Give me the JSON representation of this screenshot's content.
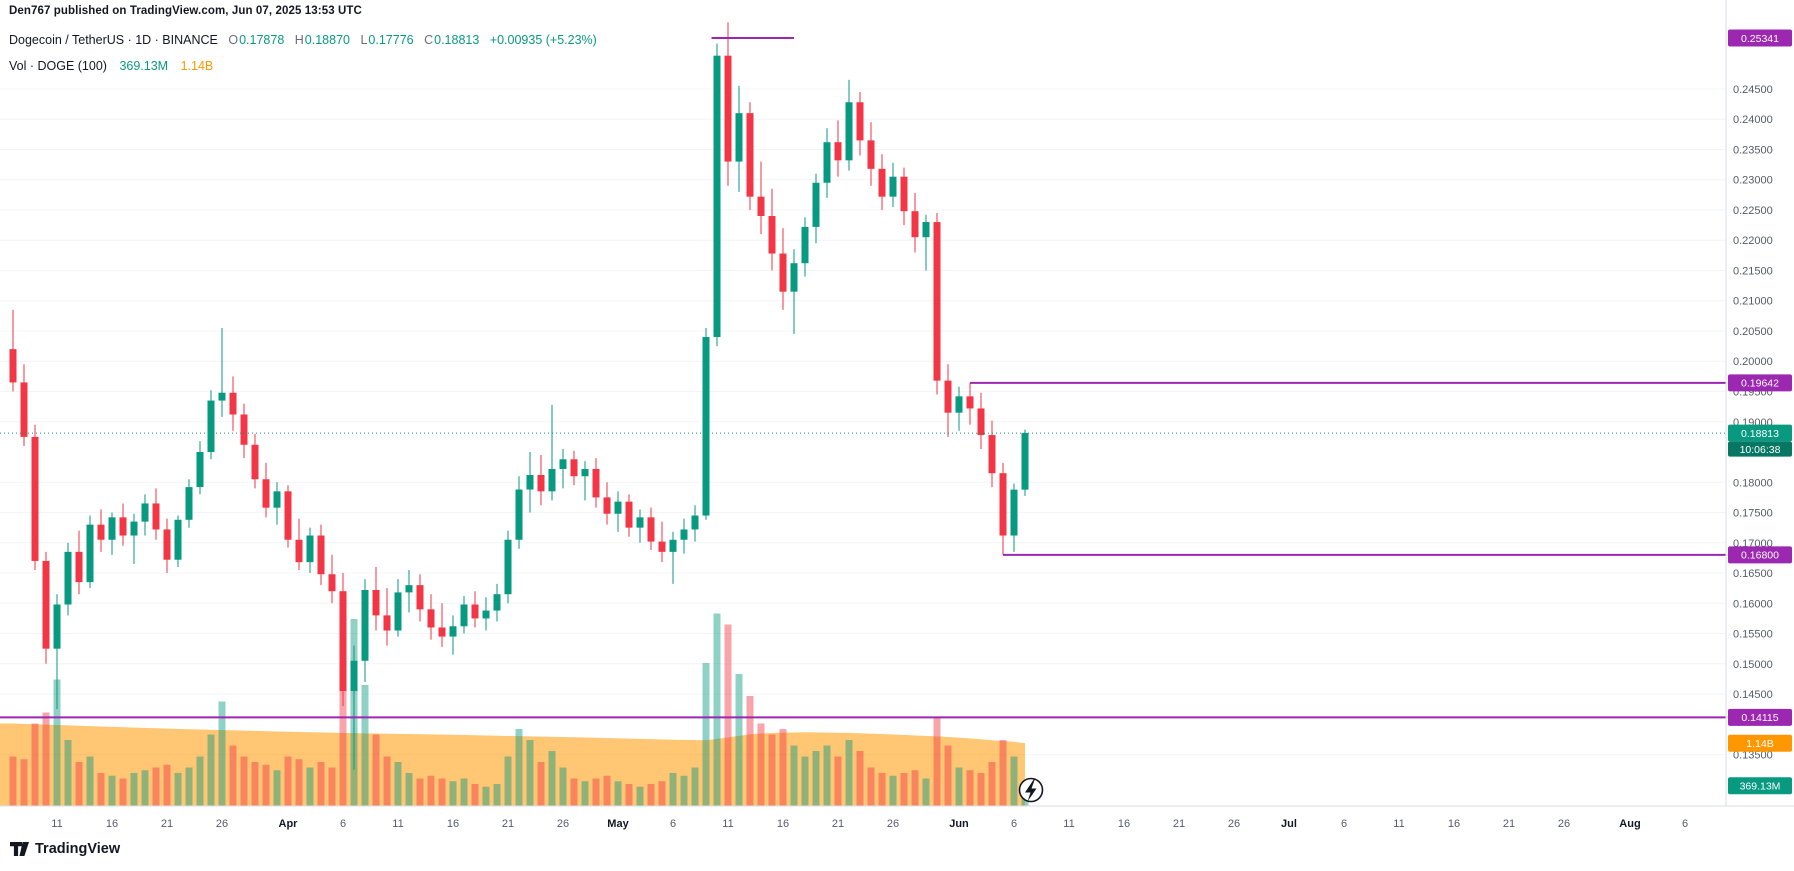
{
  "header": {
    "publish_info": "Den767 published on TradingView.com, Jun 07, 2025 13:53 UTC"
  },
  "legend": {
    "symbol_line": "Dogecoin / TetherUS · 1D · BINANCE",
    "ohlc": [
      {
        "k": "O",
        "v": "0.17878"
      },
      {
        "k": "H",
        "v": "0.18870"
      },
      {
        "k": "L",
        "v": "0.17776"
      },
      {
        "k": "C",
        "v": "0.18813"
      }
    ],
    "change": "+0.00935 (+5.23%)",
    "volume_label": "Vol · DOGE (100)",
    "volume_value": "369.13M",
    "volume_ma_value": "1.14B"
  },
  "footer": {
    "brand": "TradingView"
  },
  "colors": {
    "up": "#089981",
    "down": "#f23645",
    "purple": "#9c27b0",
    "orange": "#ff9800",
    "countdown_bg": "#077662",
    "axis_text": "#555b66",
    "month_text": "#131722",
    "grid": "#f2f4f7",
    "separator": "#dbdee6",
    "vol_up": "rgba(8,153,129,0.45)",
    "vol_down": "rgba(242,54,69,0.45)",
    "vol_ma_fill": "rgba(255,152,0,0.55)"
  },
  "chart_data": {
    "type": "candlestick",
    "title": "Dogecoin / TetherUS · 1D · BINANCE",
    "interval": "1D",
    "start_date": "2025-03-07",
    "price_axis": {
      "top_value": 0.2597,
      "bottom_value": 0.1265,
      "ticks": [
        "0.24500",
        "0.24000",
        "0.23500",
        "0.23000",
        "0.22500",
        "0.22000",
        "0.21500",
        "0.21000",
        "0.20500",
        "0.20000",
        "0.19500",
        "0.19000",
        "0.18000",
        "0.17500",
        "0.17000",
        "0.16500",
        "0.16000",
        "0.15500",
        "0.15000",
        "0.14500",
        "0.13500"
      ]
    },
    "time_axis": {
      "ticks": [
        {
          "label": "11",
          "day": 4,
          "major": false
        },
        {
          "label": "16",
          "day": 9,
          "major": false
        },
        {
          "label": "21",
          "day": 14,
          "major": false
        },
        {
          "label": "26",
          "day": 19,
          "major": false
        },
        {
          "label": "Apr",
          "day": 25,
          "major": true
        },
        {
          "label": "6",
          "day": 30,
          "major": false
        },
        {
          "label": "11",
          "day": 35,
          "major": false
        },
        {
          "label": "16",
          "day": 40,
          "major": false
        },
        {
          "label": "21",
          "day": 45,
          "major": false
        },
        {
          "label": "26",
          "day": 50,
          "major": false
        },
        {
          "label": "May",
          "day": 55,
          "major": true
        },
        {
          "label": "6",
          "day": 60,
          "major": false
        },
        {
          "label": "11",
          "day": 65,
          "major": false
        },
        {
          "label": "16",
          "day": 70,
          "major": false
        },
        {
          "label": "21",
          "day": 75,
          "major": false
        },
        {
          "label": "26",
          "day": 80,
          "major": false
        },
        {
          "label": "Jun",
          "day": 86,
          "major": true
        },
        {
          "label": "6",
          "day": 91,
          "major": false
        },
        {
          "label": "11",
          "day": 96,
          "major": false
        },
        {
          "label": "16",
          "day": 101,
          "major": false
        },
        {
          "label": "21",
          "day": 106,
          "major": false
        },
        {
          "label": "26",
          "day": 111,
          "major": false
        },
        {
          "label": "Jul",
          "day": 116,
          "major": true
        },
        {
          "label": "6",
          "day": 121,
          "major": false
        },
        {
          "label": "11",
          "day": 126,
          "major": false
        },
        {
          "label": "16",
          "day": 131,
          "major": false
        },
        {
          "label": "21",
          "day": 136,
          "major": false
        },
        {
          "label": "26",
          "day": 141,
          "major": false
        },
        {
          "label": "Aug",
          "day": 147,
          "major": true
        },
        {
          "label": "6",
          "day": 152,
          "major": false
        }
      ]
    },
    "candles": [
      [
        0.202,
        0.2085,
        0.195,
        0.1965,
        900
      ],
      [
        0.1965,
        0.1995,
        0.186,
        0.1875,
        850
      ],
      [
        0.1875,
        0.1895,
        0.1655,
        0.167,
        1500
      ],
      [
        0.167,
        0.1685,
        0.15,
        0.1525,
        1700
      ],
      [
        0.1525,
        0.1615,
        0.1425,
        0.1598,
        2300
      ],
      [
        0.1598,
        0.17,
        0.158,
        0.1685,
        1200
      ],
      [
        0.1685,
        0.172,
        0.1615,
        0.1635,
        800
      ],
      [
        0.1635,
        0.1745,
        0.1625,
        0.173,
        900
      ],
      [
        0.173,
        0.1755,
        0.1685,
        0.1705,
        600
      ],
      [
        0.1705,
        0.175,
        0.168,
        0.1742,
        550
      ],
      [
        0.1742,
        0.1765,
        0.1695,
        0.1712,
        500
      ],
      [
        0.1712,
        0.1748,
        0.1665,
        0.1735,
        600
      ],
      [
        0.1735,
        0.178,
        0.1712,
        0.1765,
        650
      ],
      [
        0.1765,
        0.179,
        0.1705,
        0.1722,
        700
      ],
      [
        0.1722,
        0.174,
        0.165,
        0.1672,
        750
      ],
      [
        0.1672,
        0.1745,
        0.166,
        0.1738,
        600
      ],
      [
        0.1738,
        0.1805,
        0.1725,
        0.1792,
        700
      ],
      [
        0.1792,
        0.1868,
        0.178,
        0.185,
        900
      ],
      [
        0.185,
        0.1952,
        0.1838,
        0.1935,
        1300
      ],
      [
        0.1935,
        0.2055,
        0.1908,
        0.1948,
        1900
      ],
      [
        0.1948,
        0.1975,
        0.1885,
        0.1912,
        1100
      ],
      [
        0.1912,
        0.193,
        0.184,
        0.1862,
        900
      ],
      [
        0.1862,
        0.188,
        0.179,
        0.1805,
        800
      ],
      [
        0.1805,
        0.1832,
        0.1742,
        0.1758,
        750
      ],
      [
        0.1758,
        0.18,
        0.173,
        0.1785,
        650
      ],
      [
        0.1785,
        0.1795,
        0.1692,
        0.1705,
        900
      ],
      [
        0.1705,
        0.174,
        0.1655,
        0.1668,
        850
      ],
      [
        0.1668,
        0.1725,
        0.165,
        0.1712,
        700
      ],
      [
        0.1712,
        0.173,
        0.163,
        0.1648,
        800
      ],
      [
        0.1648,
        0.168,
        0.16,
        0.162,
        700
      ],
      [
        0.162,
        0.165,
        0.143,
        0.1455,
        2800
      ],
      [
        0.1455,
        0.153,
        0.1325,
        0.1505,
        3400
      ],
      [
        0.1505,
        0.164,
        0.147,
        0.1622,
        2200
      ],
      [
        0.1622,
        0.166,
        0.1555,
        0.158,
        1300
      ],
      [
        0.158,
        0.1625,
        0.153,
        0.1555,
        900
      ],
      [
        0.1555,
        0.164,
        0.1545,
        0.1618,
        800
      ],
      [
        0.1618,
        0.1655,
        0.1585,
        0.163,
        600
      ],
      [
        0.163,
        0.1648,
        0.157,
        0.159,
        500
      ],
      [
        0.159,
        0.1615,
        0.154,
        0.156,
        550
      ],
      [
        0.156,
        0.16,
        0.1528,
        0.1545,
        500
      ],
      [
        0.1545,
        0.158,
        0.1515,
        0.1562,
        450
      ],
      [
        0.1562,
        0.1612,
        0.155,
        0.1598,
        500
      ],
      [
        0.1598,
        0.162,
        0.156,
        0.1575,
        400
      ],
      [
        0.1575,
        0.161,
        0.1555,
        0.1588,
        350
      ],
      [
        0.1588,
        0.1632,
        0.157,
        0.1615,
        400
      ],
      [
        0.1615,
        0.172,
        0.16,
        0.1705,
        900
      ],
      [
        0.1705,
        0.181,
        0.169,
        0.1788,
        1400
      ],
      [
        0.1788,
        0.185,
        0.175,
        0.1812,
        1200
      ],
      [
        0.1812,
        0.1845,
        0.1762,
        0.1785,
        800
      ],
      [
        0.1785,
        0.1928,
        0.177,
        0.1822,
        1000
      ],
      [
        0.1822,
        0.1855,
        0.179,
        0.1838,
        700
      ],
      [
        0.1838,
        0.1852,
        0.1795,
        0.181,
        500
      ],
      [
        0.181,
        0.1835,
        0.177,
        0.1822,
        450
      ],
      [
        0.1822,
        0.184,
        0.1758,
        0.1775,
        500
      ],
      [
        0.1775,
        0.18,
        0.173,
        0.1748,
        550
      ],
      [
        0.1748,
        0.1785,
        0.1718,
        0.1768,
        450
      ],
      [
        0.1768,
        0.178,
        0.171,
        0.1725,
        400
      ],
      [
        0.1725,
        0.1755,
        0.17,
        0.1742,
        350
      ],
      [
        0.1742,
        0.1758,
        0.1688,
        0.1702,
        400
      ],
      [
        0.1702,
        0.1735,
        0.1668,
        0.1685,
        450
      ],
      [
        0.1685,
        0.1718,
        0.1632,
        0.1705,
        600
      ],
      [
        0.1705,
        0.174,
        0.1682,
        0.1722,
        550
      ],
      [
        0.1722,
        0.1762,
        0.1702,
        0.1745,
        700
      ],
      [
        0.1745,
        0.2055,
        0.1738,
        0.204,
        2600
      ],
      [
        0.204,
        0.2525,
        0.2025,
        0.2505,
        3500
      ],
      [
        0.2505,
        0.256,
        0.229,
        0.233,
        3300
      ],
      [
        0.233,
        0.2455,
        0.228,
        0.241,
        2400
      ],
      [
        0.241,
        0.2428,
        0.225,
        0.2272,
        2000
      ],
      [
        0.2272,
        0.233,
        0.221,
        0.224,
        1500
      ],
      [
        0.224,
        0.2285,
        0.215,
        0.2178,
        1300
      ],
      [
        0.2178,
        0.222,
        0.2085,
        0.2115,
        1400
      ],
      [
        0.2115,
        0.2185,
        0.2045,
        0.2162,
        1100
      ],
      [
        0.2162,
        0.2238,
        0.214,
        0.2222,
        900
      ],
      [
        0.2222,
        0.231,
        0.2195,
        0.2295,
        1000
      ],
      [
        0.2295,
        0.2385,
        0.227,
        0.2362,
        1100
      ],
      [
        0.2362,
        0.2398,
        0.2305,
        0.2332,
        900
      ],
      [
        0.2332,
        0.2465,
        0.2315,
        0.2428,
        1200
      ],
      [
        0.2428,
        0.2445,
        0.234,
        0.2365,
        1000
      ],
      [
        0.2365,
        0.2395,
        0.229,
        0.2318,
        700
      ],
      [
        0.2318,
        0.2342,
        0.225,
        0.2272,
        600
      ],
      [
        0.2272,
        0.2328,
        0.2255,
        0.2305,
        550
      ],
      [
        0.2305,
        0.232,
        0.2225,
        0.2248,
        600
      ],
      [
        0.2248,
        0.2278,
        0.218,
        0.2205,
        650
      ],
      [
        0.2205,
        0.2242,
        0.215,
        0.223,
        500
      ],
      [
        0.223,
        0.2245,
        0.1945,
        0.1968,
        1600
      ],
      [
        0.1968,
        0.1995,
        0.1875,
        0.1915,
        1100
      ],
      [
        0.1915,
        0.1958,
        0.1885,
        0.1942,
        700
      ],
      [
        0.1942,
        0.19642,
        0.1895,
        0.1922,
        650
      ],
      [
        0.1922,
        0.1948,
        0.1855,
        0.1878,
        600
      ],
      [
        0.1878,
        0.1902,
        0.1792,
        0.1815,
        800
      ],
      [
        0.1815,
        0.1832,
        0.168,
        0.1712,
        1200
      ],
      [
        0.1712,
        0.1798,
        0.1685,
        0.17878,
        900
      ],
      [
        0.17878,
        0.1887,
        0.17776,
        0.18813,
        369.13
      ]
    ],
    "volume_unit": "millions of DOGE",
    "volume_ma_points": [
      [
        0,
        1500
      ],
      [
        8,
        1445
      ],
      [
        16,
        1395
      ],
      [
        24,
        1355
      ],
      [
        32,
        1320
      ],
      [
        40,
        1295
      ],
      [
        46,
        1270
      ],
      [
        52,
        1245
      ],
      [
        56,
        1225
      ],
      [
        60,
        1205
      ],
      [
        63,
        1195
      ],
      [
        65,
        1245
      ],
      [
        67,
        1305
      ],
      [
        69,
        1330
      ],
      [
        72,
        1340
      ],
      [
        76,
        1330
      ],
      [
        80,
        1300
      ],
      [
        84,
        1265
      ],
      [
        87,
        1230
      ],
      [
        89,
        1195
      ],
      [
        91,
        1165
      ],
      [
        92,
        1140
      ]
    ],
    "price_lines": [
      {
        "label": "0.25341",
        "price": 0.25341,
        "from_day": 63.5,
        "to_day": 71
      },
      {
        "label": "0.19642",
        "price": 0.19642,
        "from_day": 87,
        "to_day": "right"
      },
      {
        "label": "0.16800",
        "price": 0.168,
        "from_day": 90,
        "to_day": "right"
      },
      {
        "label": "0.14115",
        "price": 0.14115,
        "from_day": "left",
        "to_day": "right"
      }
    ],
    "last_price": {
      "label": "0.18813",
      "price": 0.18813,
      "countdown": "10:06:38"
    },
    "volume_badges": [
      {
        "label": "1.14B",
        "value_m": 1140,
        "bg": "#ff9800"
      },
      {
        "label": "369.13M",
        "value_m": 369.13,
        "bg": "#089981"
      }
    ]
  }
}
